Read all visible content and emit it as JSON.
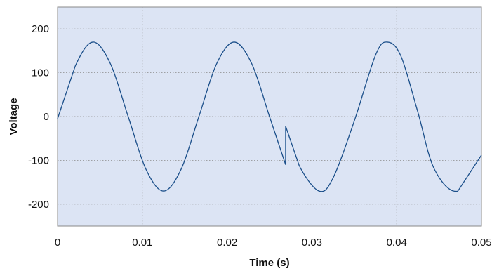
{
  "chart_data": {
    "type": "line",
    "title": "",
    "xlabel": "Time (s)",
    "ylabel": "Voltage",
    "xlim": [
      0,
      0.05
    ],
    "ylim": [
      -250,
      250
    ],
    "grid": true,
    "grid_style": "dotted",
    "plot_background": "#dce4f4",
    "line_color": "#1b4f8a",
    "x_ticks": [
      0,
      0.01,
      0.02,
      0.03,
      0.04,
      0.05
    ],
    "x_tick_labels": [
      "0",
      "0.01",
      "0.02",
      "0.03",
      "0.04",
      "0.05"
    ],
    "y_ticks": [
      200,
      100,
      0,
      -100,
      -200
    ],
    "y_tick_labels": [
      "200",
      "100",
      "0",
      "-100",
      "-200"
    ],
    "series": [
      {
        "x": [
          0,
          0.00208,
          0.00417,
          0.00625,
          0.00833,
          0.01042,
          0.0125,
          0.01458,
          0.01667,
          0.01875,
          0.02083,
          0.02292,
          0.025,
          0.0269,
          0.0269,
          0.0285,
          0.03083,
          0.0325,
          0.035,
          0.0375,
          0.03889,
          0.0405,
          0.0425,
          0.04444,
          0.04722,
          0.05
        ],
        "y": [
          -5,
          115,
          170,
          120,
          0,
          -120,
          -170,
          -120,
          0,
          120,
          170,
          120,
          0,
          -110,
          -22,
          -112,
          -170,
          -140,
          -10,
          140,
          170,
          138,
          10,
          -120,
          -170,
          -88
        ]
      }
    ]
  }
}
